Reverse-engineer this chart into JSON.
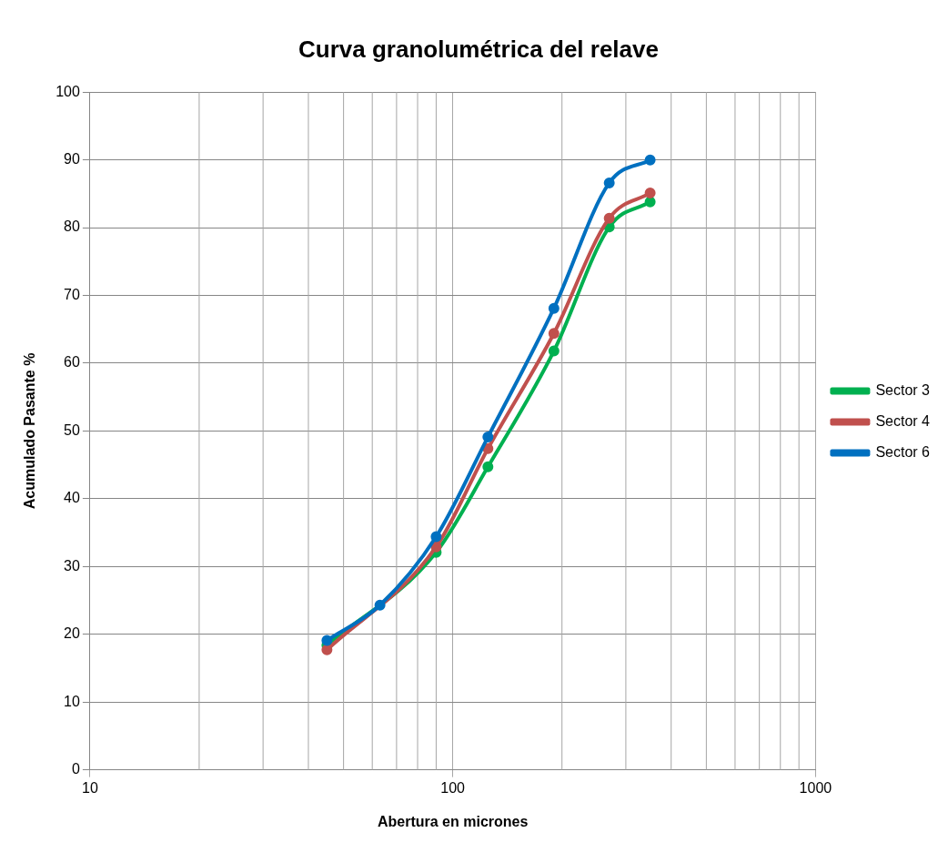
{
  "chart_data": {
    "type": "line",
    "title": "Curva granolumétrica del relave",
    "xlabel": "Abertura en micrones",
    "ylabel": "Acumulado Pasante %",
    "x": [
      45,
      63,
      90,
      125,
      190,
      270,
      350
    ],
    "series": [
      {
        "name": "Sector 3",
        "color": "#00b050",
        "values": [
          18.4,
          null,
          32.1,
          44.7,
          61.8,
          80.1,
          83.8
        ]
      },
      {
        "name": "Sector 4",
        "color": "#c0504d",
        "values": [
          17.7,
          null,
          32.9,
          47.4,
          64.4,
          81.4,
          85.1
        ]
      },
      {
        "name": "Sector 6",
        "color": "#0070c0",
        "values": [
          19.1,
          24.3,
          34.4,
          49.1,
          68.1,
          86.6,
          90
        ]
      }
    ],
    "log": "x",
    "xlim": [
      10,
      1000
    ],
    "xticks": [
      10,
      100,
      1000
    ],
    "ylim": [
      0,
      100
    ],
    "yticks": [
      0,
      10,
      20,
      30,
      40,
      50,
      60,
      70,
      80,
      90,
      100
    ],
    "grid": true,
    "legend": "right",
    "marker": "circle",
    "line_style": "solid"
  }
}
